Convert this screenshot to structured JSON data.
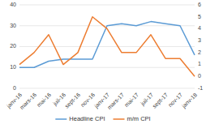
{
  "chart_data": {
    "type": "line",
    "categories": [
      "janv-16",
      "mars-16",
      "mai-16",
      "juil-16",
      "sept-16",
      "nov-16",
      "janv-17",
      "mars-17",
      "mai-17",
      "juil-17",
      "sept-17",
      "nov-17",
      "janv-18"
    ],
    "series": [
      {
        "name": "Headline CPI",
        "color": "#5b9bd5",
        "values": [
          10,
          10,
          13,
          14,
          14,
          14,
          30,
          31,
          30,
          32,
          31,
          30,
          16
        ]
      },
      {
        "name": "m/m CPI",
        "color": "#ed7d31",
        "axis": "y2",
        "values": [
          1.0,
          2.0,
          3.5,
          1.0,
          2.0,
          5.0,
          4.0,
          2.0,
          2.0,
          3.5,
          1.5,
          1.5,
          0.0
        ]
      }
    ],
    "ylim": [
      0,
      40
    ],
    "yticks": [
      0,
      10,
      20,
      30,
      40
    ],
    "y2lim": [
      -1,
      6
    ],
    "y2ticks": [
      -1,
      0,
      1,
      2,
      3,
      4,
      5,
      6
    ],
    "grid": true,
    "legend": "bottom"
  }
}
